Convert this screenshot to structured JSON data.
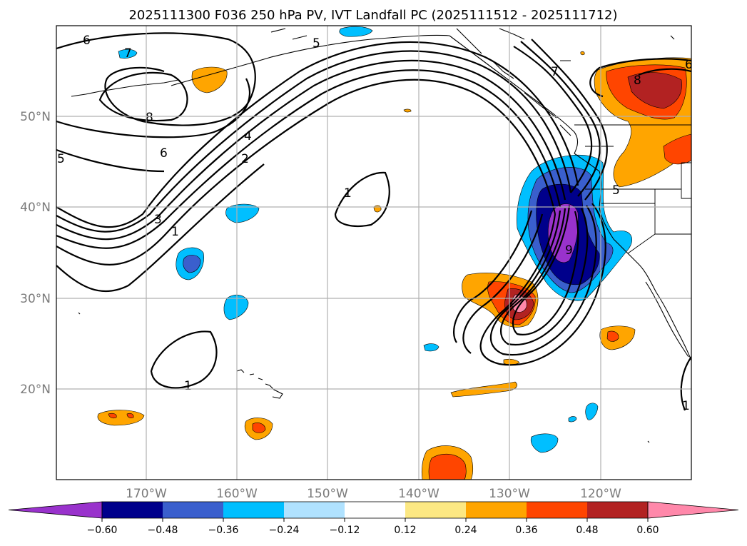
{
  "title": "2025111300 F036 250 hPa PV, IVT Landfall PC (2025111512 - 2025111712)",
  "lat_labels": [
    "50°N",
    "40°N",
    "30°N",
    "20°N"
  ],
  "lon_labels": [
    "170°W",
    "160°W",
    "150°W",
    "140°W",
    "130°W",
    "120°W"
  ],
  "colorbar": {
    "ticks": [
      "−0.60",
      "−0.48",
      "−0.36",
      "−0.24",
      "−0.12",
      "0.12",
      "0.24",
      "0.36",
      "0.48",
      "0.60"
    ],
    "colors": [
      "#9932cc",
      "#00008b",
      "#3a5fcd",
      "#00bfff",
      "#b0e2ff",
      "#ffffff",
      "#fce883",
      "#ffa500",
      "#ff4500",
      "#b22222",
      "#ff88aa"
    ]
  },
  "contour_labels": [
    "6",
    "7",
    "5",
    "8",
    "6",
    "5",
    "4",
    "2",
    "3",
    "1",
    "1",
    "1",
    "7",
    "8",
    "6",
    "5",
    "9",
    "1"
  ],
  "fill_colors": {
    "pos1": "#ffa500",
    "pos2": "#ff4500",
    "pos3": "#b22222",
    "pos4": "#ff88aa",
    "neg1": "#00bfff",
    "neg2": "#3a5fcd",
    "neg3": "#00008b",
    "neg4": "#9932cc"
  }
}
